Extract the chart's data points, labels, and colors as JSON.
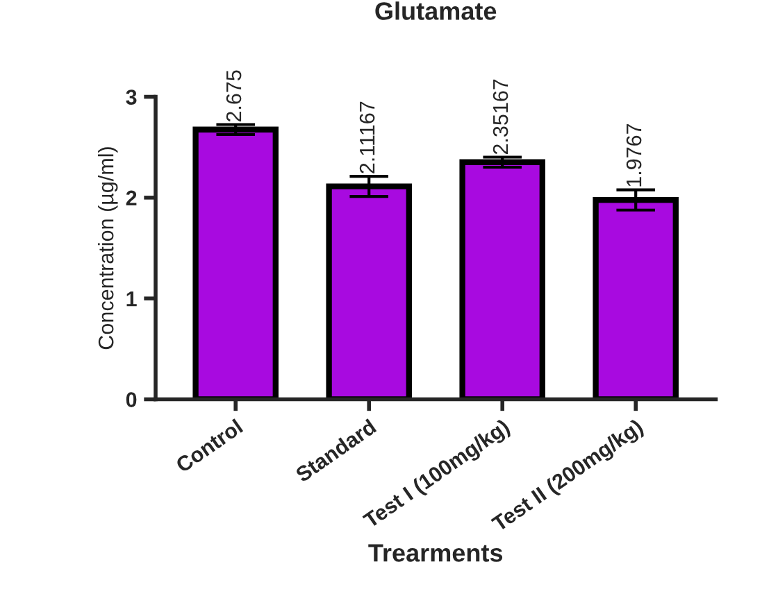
{
  "chart_data": {
    "type": "bar",
    "title": "Glutamate",
    "xlabel": "Trearments",
    "ylabel": "Concentration (µg/ml)",
    "categories": [
      "Control",
      "Standard",
      "Test I (100mg/kg)",
      "Test II (200mg/kg)"
    ],
    "values": [
      2.675,
      2.11167,
      2.35167,
      1.9767
    ],
    "errors": [
      0.05,
      0.1,
      0.05,
      0.1
    ],
    "color": "#a80ae0",
    "data_labels": true,
    "ylim": [
      0,
      3
    ],
    "yticks": [
      0,
      1,
      2,
      3
    ],
    "grid": false
  }
}
